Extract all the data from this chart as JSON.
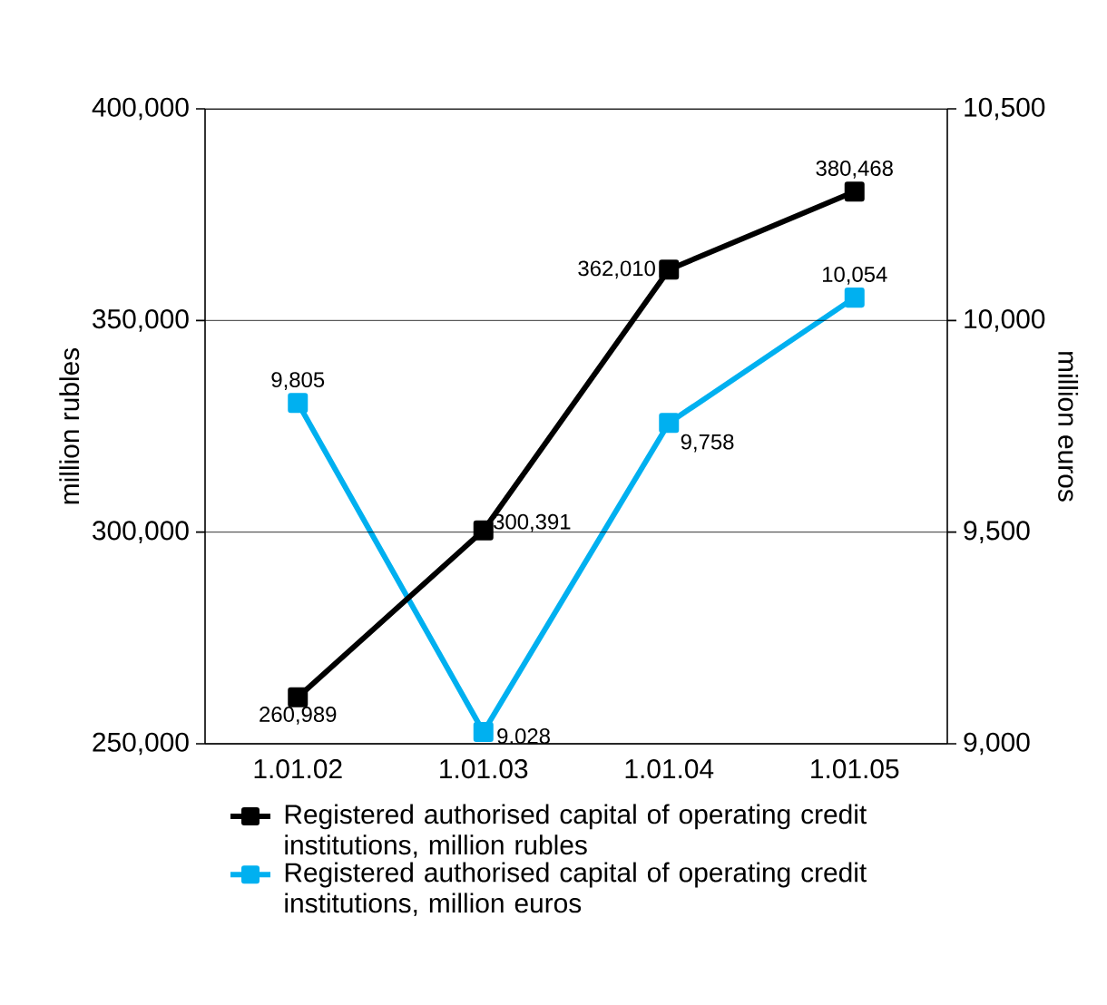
{
  "chart_data": {
    "type": "line",
    "categories": [
      "1.01.02",
      "1.01.03",
      "1.01.04",
      "1.01.05"
    ],
    "ylabel": "million rubles",
    "y2label": "million euros",
    "ylim": [
      250000,
      400000
    ],
    "yticks": [
      {
        "value": 250000,
        "label": "250,000"
      },
      {
        "value": 300000,
        "label": "300,000"
      },
      {
        "value": 350000,
        "label": "350,000"
      },
      {
        "value": 400000,
        "label": "400,000"
      }
    ],
    "y2lim": [
      9000,
      10500
    ],
    "y2ticks": [
      {
        "value": 9000,
        "label": "9,000"
      },
      {
        "value": 9500,
        "label": "9,500"
      },
      {
        "value": 10000,
        "label": "10,000"
      },
      {
        "value": 10500,
        "label": "10,500"
      }
    ],
    "grid": "y",
    "legend": "bottom",
    "marker": "square",
    "line_style": "solid",
    "series": [
      {
        "name": "Registered authorised capital of operating credit institutions, million rubles",
        "color": "#000000",
        "values": [
          260989,
          300391,
          362010,
          380468
        ],
        "value_labels": [
          "260,989",
          "300,391",
          "362,010",
          "380,468"
        ]
      },
      {
        "name": "Registered authorised capital of operating credit institutions, million euros",
        "color": "#00b0f0",
        "axis": "y2",
        "values": [
          9805,
          9028,
          9758,
          10054
        ],
        "value_labels": [
          "9,805",
          "9,028",
          "9,758",
          "10,054"
        ]
      }
    ]
  }
}
